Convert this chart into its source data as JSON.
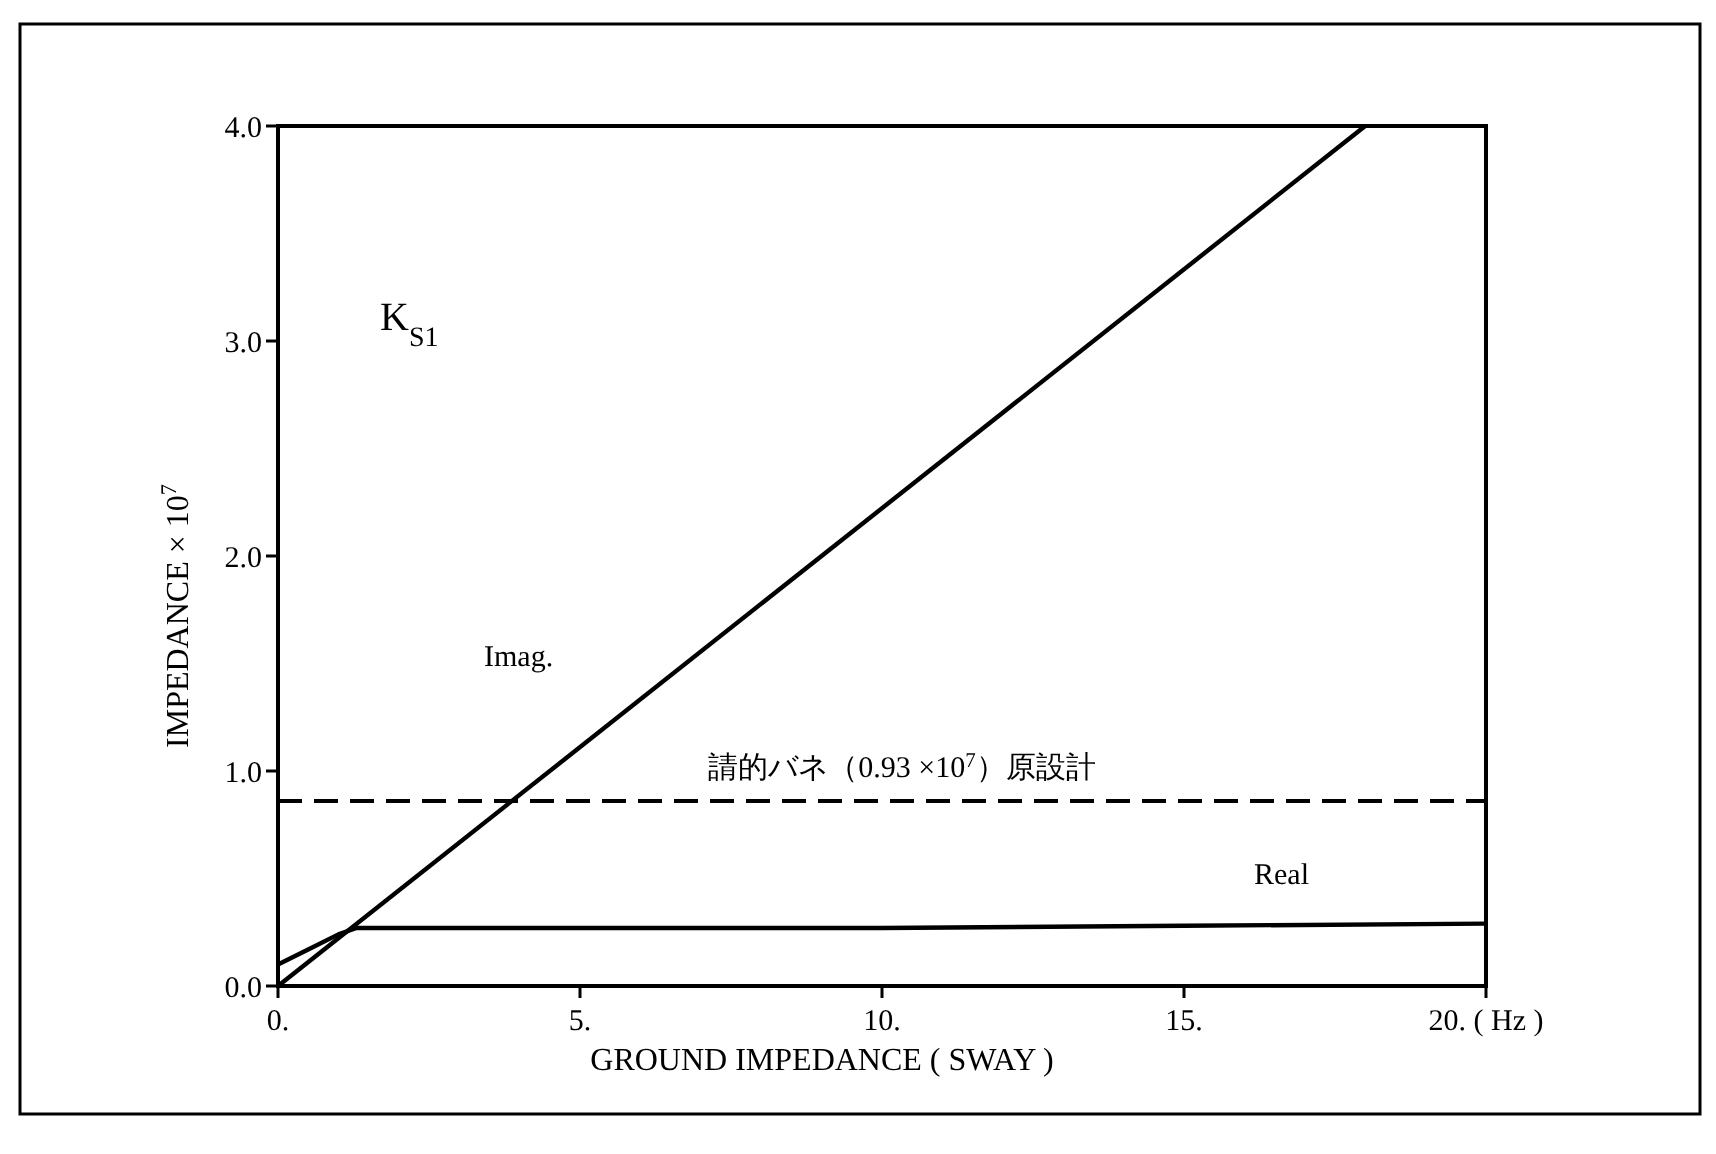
{
  "chart_data": {
    "type": "line",
    "xlabel": "GROUND IMPEDANCE ( SWAY )",
    "ylabel": "IMPEDANCE × 10$^{7}$",
    "annotations": [
      "K$_{S1}$"
    ],
    "series": [
      {
        "name": "Imag.",
        "color": "#000000",
        "x": [
          0,
          18
        ],
        "values": [
          0,
          4.0
        ]
      },
      {
        "name": "Real",
        "color": "#000000",
        "x": [
          0,
          0.5,
          1.0,
          1.3,
          5,
          10,
          15,
          20
        ],
        "values": [
          0.1,
          0.17,
          0.24,
          0.27,
          0.27,
          0.27,
          0.28,
          0.29
        ]
      }
    ],
    "ref_lines": [
      {
        "axis": "y",
        "value": 0.86,
        "label": "請的バネ（0.93 ×10$^{7}$）原設計",
        "line_style": "dashed",
        "color": "#000000"
      }
    ],
    "xlim": [
      0,
      20
    ],
    "xticks": [
      {
        "value": 0,
        "label": "0."
      },
      {
        "value": 5,
        "label": "5."
      },
      {
        "value": 10,
        "label": "10."
      },
      {
        "value": 15,
        "label": "15."
      },
      {
        "value": 20,
        "label": "20. ( Hz )"
      }
    ],
    "ylim": [
      0,
      4
    ],
    "yticks": [
      {
        "value": 0,
        "label": "0.0"
      },
      {
        "value": 1,
        "label": "1.0"
      },
      {
        "value": 2,
        "label": "2.0"
      },
      {
        "value": 3,
        "label": "3.0"
      },
      {
        "value": 4,
        "label": "4.0"
      }
    ],
    "grid": false,
    "marker": "none",
    "line_style": "solid"
  }
}
